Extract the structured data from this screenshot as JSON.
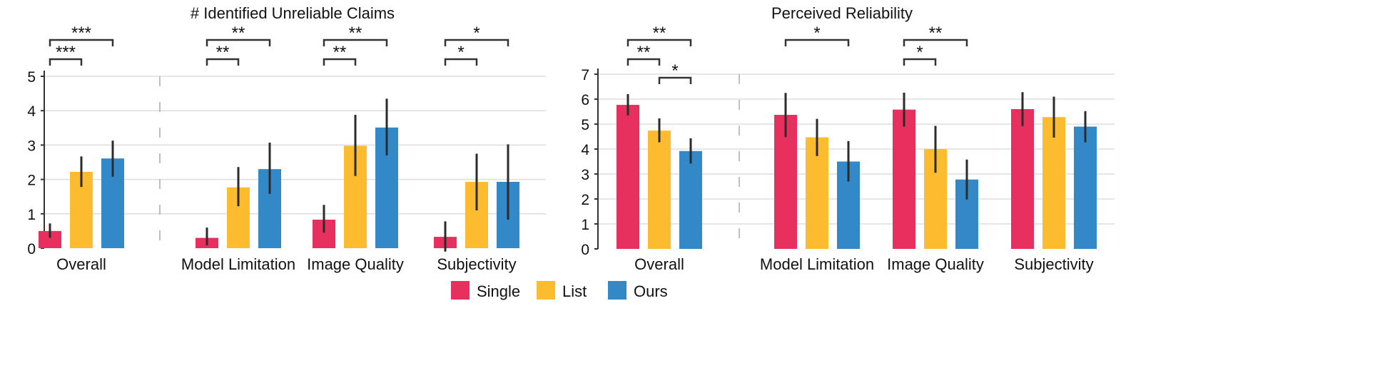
{
  "colors": {
    "Single": "#E8305F",
    "List": "#FDBB30",
    "Ours": "#3388C8"
  },
  "legend": {
    "items": [
      "Single",
      "List",
      "Ours"
    ],
    "placement": "bottom-center"
  },
  "chart_data": [
    {
      "type": "bar",
      "title": "# Identified Unreliable Claims",
      "categories": [
        "Overall",
        "Model Limitation",
        "Image Quality",
        "Subjectivity"
      ],
      "ylim": [
        0,
        5
      ],
      "yticks": [
        "0",
        "1",
        "2",
        "3",
        "4",
        "5"
      ],
      "grid": true,
      "series": [
        {
          "name": "Single",
          "values": [
            0.5,
            0.3,
            0.83,
            0.33
          ],
          "err_low": [
            0.3,
            0.08,
            0.45,
            -0.1
          ],
          "err_high": [
            0.72,
            0.6,
            1.26,
            0.78
          ]
        },
        {
          "name": "List",
          "values": [
            2.22,
            1.77,
            2.98,
            1.93
          ],
          "err_low": [
            1.78,
            1.22,
            2.1,
            1.1
          ],
          "err_high": [
            2.67,
            2.36,
            3.88,
            2.75
          ]
        },
        {
          "name": "Ours",
          "values": [
            2.61,
            2.3,
            3.51,
            1.93
          ],
          "err_low": [
            2.08,
            1.58,
            2.7,
            0.83
          ],
          "err_high": [
            3.13,
            3.07,
            4.35,
            3.02
          ]
        }
      ],
      "significance": [
        {
          "category": "Overall",
          "pair": [
            "Single",
            "List"
          ],
          "label": "***"
        },
        {
          "category": "Overall",
          "pair": [
            "Single",
            "Ours"
          ],
          "label": "***"
        },
        {
          "category": "Model Limitation",
          "pair": [
            "Single",
            "List"
          ],
          "label": "**"
        },
        {
          "category": "Model Limitation",
          "pair": [
            "Single",
            "Ours"
          ],
          "label": "**"
        },
        {
          "category": "Image Quality",
          "pair": [
            "Single",
            "List"
          ],
          "label": "**"
        },
        {
          "category": "Image Quality",
          "pair": [
            "Single",
            "Ours"
          ],
          "label": "**"
        },
        {
          "category": "Subjectivity",
          "pair": [
            "Single",
            "List"
          ],
          "label": "*"
        },
        {
          "category": "Subjectivity",
          "pair": [
            "Single",
            "Ours"
          ],
          "label": "*"
        }
      ]
    },
    {
      "type": "bar",
      "title": "Perceived Reliability",
      "categories": [
        "Overall",
        "Model Limitation",
        "Image Quality",
        "Subjectivity"
      ],
      "ylim": [
        0,
        7
      ],
      "yticks": [
        "0",
        "1",
        "2",
        "3",
        "4",
        "5",
        "6",
        "7"
      ],
      "grid": true,
      "series": [
        {
          "name": "Single",
          "values": [
            5.77,
            5.37,
            5.58,
            5.6
          ],
          "err_low": [
            5.35,
            4.48,
            4.9,
            4.92
          ],
          "err_high": [
            6.2,
            6.25,
            6.26,
            6.28
          ]
        },
        {
          "name": "List",
          "values": [
            4.74,
            4.47,
            4.0,
            5.28
          ],
          "err_low": [
            4.27,
            3.72,
            3.05,
            4.46
          ],
          "err_high": [
            5.23,
            5.21,
            4.93,
            6.1
          ]
        },
        {
          "name": "Ours",
          "values": [
            3.92,
            3.5,
            2.78,
            4.9
          ],
          "err_low": [
            3.42,
            2.7,
            1.98,
            4.27
          ],
          "err_high": [
            4.43,
            4.32,
            3.58,
            5.52
          ]
        }
      ],
      "significance": [
        {
          "category": "Overall",
          "pair": [
            "Single",
            "List"
          ],
          "label": "**"
        },
        {
          "category": "Overall",
          "pair": [
            "Single",
            "Ours"
          ],
          "label": "**"
        },
        {
          "category": "Overall",
          "pair": [
            "List",
            "Ours"
          ],
          "label": "*"
        },
        {
          "category": "Model Limitation",
          "pair": [
            "Single",
            "Ours"
          ],
          "label": "*"
        },
        {
          "category": "Image Quality",
          "pair": [
            "Single",
            "List"
          ],
          "label": "*"
        },
        {
          "category": "Image Quality",
          "pair": [
            "Single",
            "Ours"
          ],
          "label": "**"
        }
      ]
    }
  ]
}
